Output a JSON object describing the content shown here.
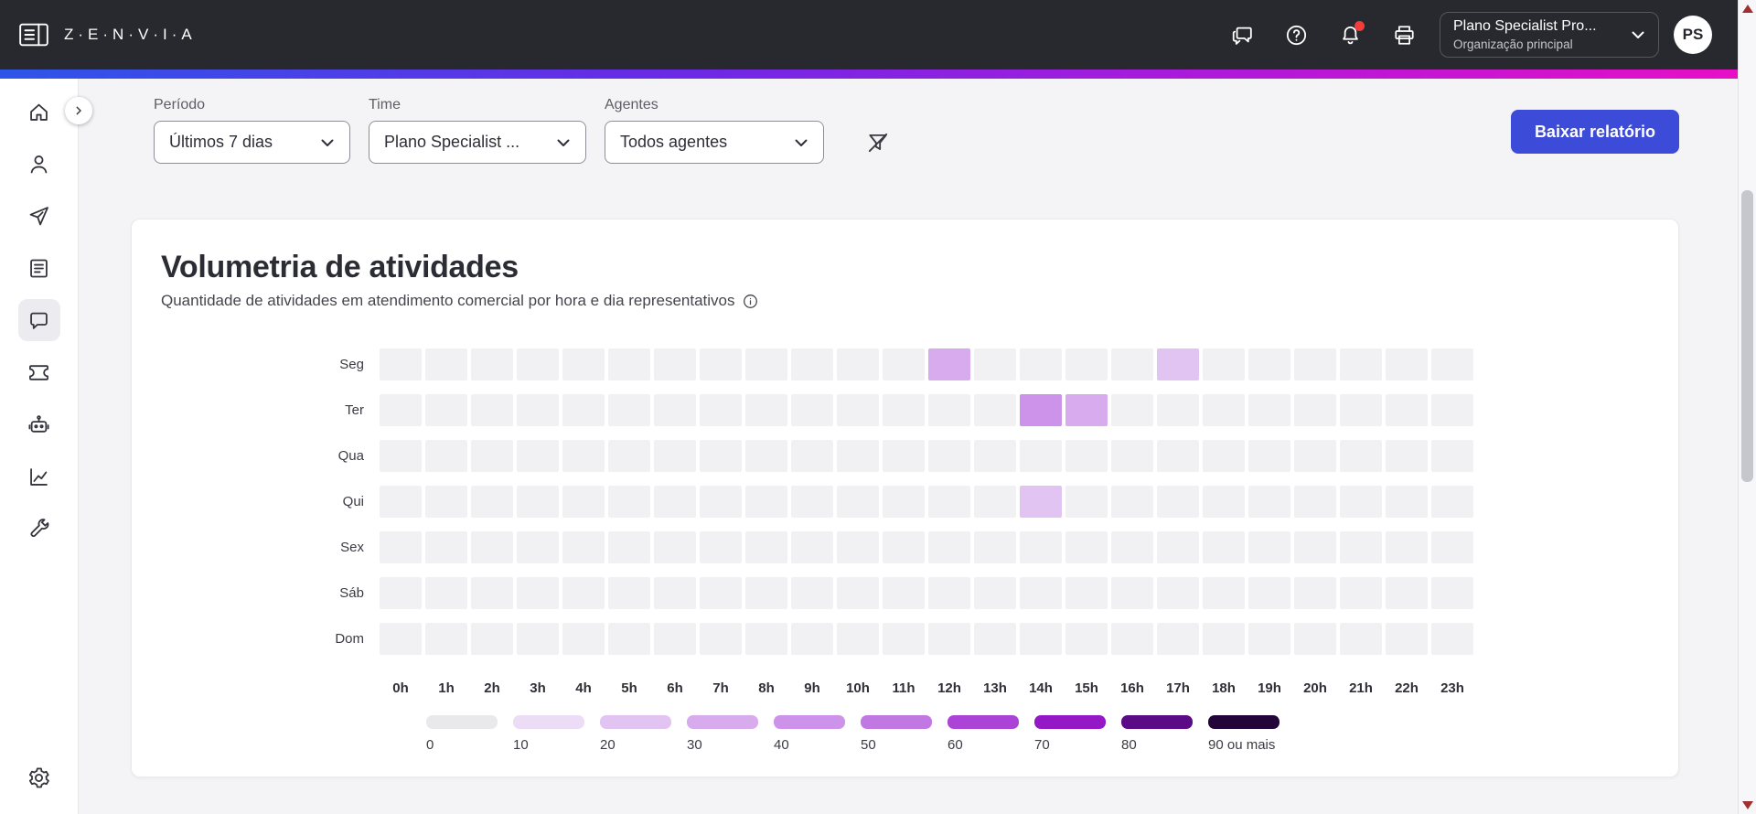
{
  "header": {
    "brand": "Z·E·N·V·I·A",
    "icons": [
      "conversations-icon",
      "help-icon",
      "notifications-icon",
      "printer-icon"
    ],
    "org": {
      "title": "Plano Specialist Pro...",
      "subtitle": "Organização principal"
    },
    "avatar": "PS"
  },
  "sidebar": {
    "items": [
      "home",
      "contacts",
      "send",
      "reports",
      "chat",
      "tickets",
      "bot",
      "analytics",
      "tools"
    ],
    "active": "chat",
    "settings": "settings"
  },
  "filters": {
    "periodo": {
      "label": "Período",
      "value": "Últimos 7 dias"
    },
    "time": {
      "label": "Time",
      "value": "Plano Specialist ..."
    },
    "agentes": {
      "label": "Agentes",
      "value": "Todos agentes"
    }
  },
  "actions": {
    "download": "Baixar relatório"
  },
  "card": {
    "title": "Volumetria de atividades",
    "subtitle": "Quantidade de atividades em atendimento comercial por hora e dia representativos"
  },
  "chart_data": {
    "type": "heatmap",
    "title": "Volumetria de atividades",
    "days": [
      "Seg",
      "Ter",
      "Qua",
      "Qui",
      "Sex",
      "Sáb",
      "Dom"
    ],
    "hours": [
      "0h",
      "1h",
      "2h",
      "3h",
      "4h",
      "5h",
      "6h",
      "7h",
      "8h",
      "9h",
      "10h",
      "11h",
      "12h",
      "13h",
      "14h",
      "15h",
      "16h",
      "17h",
      "18h",
      "19h",
      "20h",
      "21h",
      "22h",
      "23h"
    ],
    "base_color": "#f1f1f4",
    "cells": [
      {
        "day": "Seg",
        "hour": "12h",
        "value": 30,
        "color": "#d8abee"
      },
      {
        "day": "Seg",
        "hour": "17h",
        "value": 20,
        "color": "#e2c4f3"
      },
      {
        "day": "Ter",
        "hour": "14h",
        "value": 40,
        "color": "#cd92e9"
      },
      {
        "day": "Ter",
        "hour": "15h",
        "value": 30,
        "color": "#d8abee"
      },
      {
        "day": "Qui",
        "hour": "14h",
        "value": 20,
        "color": "#e2c4f3"
      }
    ],
    "legend": [
      {
        "label": "0",
        "color": "#e9e9eb"
      },
      {
        "label": "10",
        "color": "#ecdcf6"
      },
      {
        "label": "20",
        "color": "#e2c4f3"
      },
      {
        "label": "30",
        "color": "#d8abee"
      },
      {
        "label": "40",
        "color": "#cd92e9"
      },
      {
        "label": "50",
        "color": "#c178e3"
      },
      {
        "label": "60",
        "color": "#ab43d6"
      },
      {
        "label": "70",
        "color": "#9418c5"
      },
      {
        "label": "80",
        "color": "#5c0b87"
      },
      {
        "label": "90 ou mais",
        "color": "#24053a"
      }
    ],
    "legend_position": "bottom",
    "grid": "off"
  },
  "colors": {
    "accent_blue": "#3c4cd8",
    "notification_red": "#f63b3b",
    "gradient": [
      "#2d55e8",
      "#6a2ae6",
      "#a81bdc",
      "#e90fc6"
    ]
  }
}
